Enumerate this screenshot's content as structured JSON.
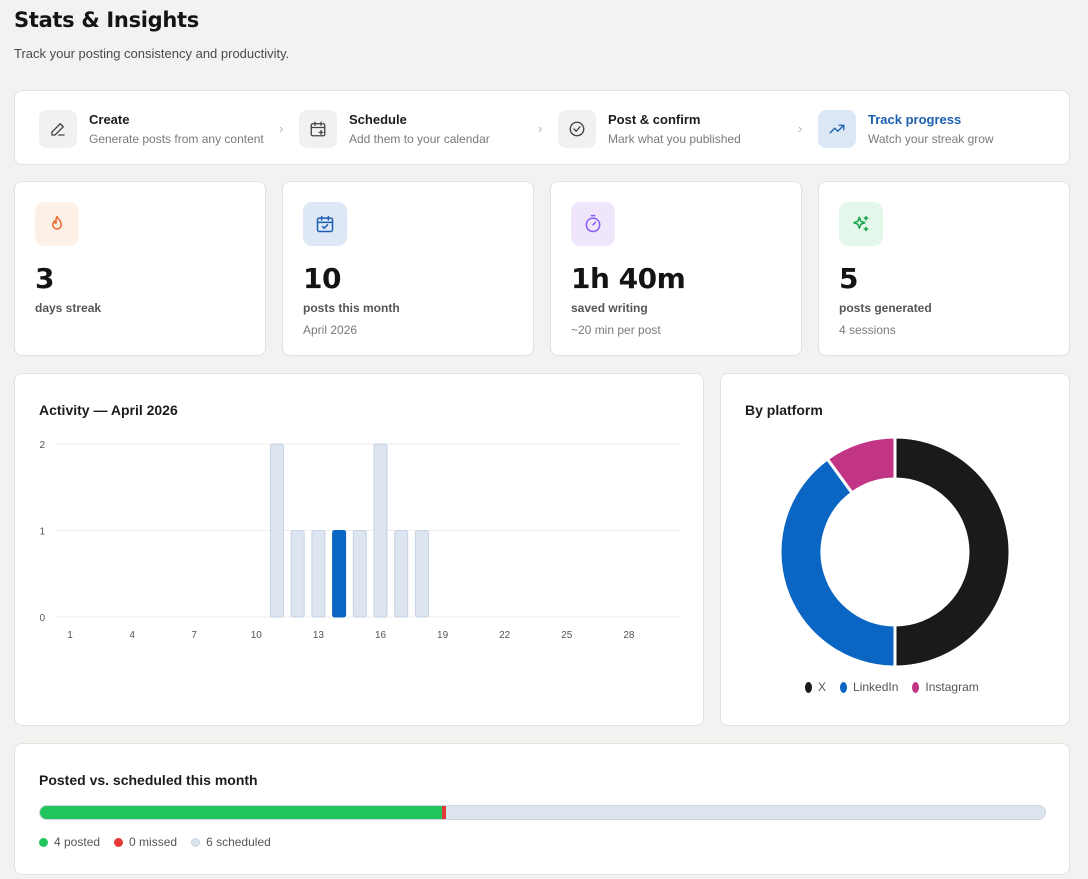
{
  "page": {
    "title": "Stats & Insights",
    "subtitle": "Track your posting consistency and productivity."
  },
  "steps": [
    {
      "title": "Create",
      "desc": "Generate posts from any content",
      "icon": "pencil-icon",
      "active": false
    },
    {
      "title": "Schedule",
      "desc": "Add them to your calendar",
      "icon": "calendar-plus-icon",
      "active": false
    },
    {
      "title": "Post & confirm",
      "desc": "Mark what you published",
      "icon": "check-circle-icon",
      "active": false
    },
    {
      "title": "Track progress",
      "desc": "Watch your streak grow",
      "icon": "trending-up-icon",
      "active": true
    }
  ],
  "stats": [
    {
      "value": "3",
      "label": "days streak",
      "sub": "",
      "icon": "flame-icon",
      "icon_bg": "#fdf1e7",
      "icon_color": "#ea6a2a"
    },
    {
      "value": "10",
      "label": "posts this month",
      "sub": "April 2026",
      "icon": "calendar-check-icon",
      "icon_bg": "#dde7f5",
      "icon_color": "#1d5fb0"
    },
    {
      "value": "1h 40m",
      "label": "saved writing",
      "sub": "~20 min per post",
      "icon": "stopwatch-icon",
      "icon_bg": "#efe6fb",
      "icon_color": "#8b5cf6"
    },
    {
      "value": "5",
      "label": "posts generated",
      "sub": "4 sessions",
      "icon": "sparkles-icon",
      "icon_bg": "#e3f7ea",
      "icon_color": "#16a34a"
    }
  ],
  "activity": {
    "title": "Activity — April 2026"
  },
  "platform": {
    "title": "By platform"
  },
  "posted": {
    "title": "Posted vs. scheduled this month",
    "posted": 4,
    "missed": 0,
    "scheduled": 6,
    "legend": [
      {
        "label": "4 posted",
        "color": "#22c55e"
      },
      {
        "label": "0 missed",
        "color": "#e53935"
      },
      {
        "label": "6 scheduled",
        "color": "#dce4ee"
      }
    ]
  },
  "chart_data": [
    {
      "type": "bar",
      "title": "Activity — April 2026",
      "x": [
        1,
        2,
        3,
        4,
        5,
        6,
        7,
        8,
        9,
        10,
        11,
        12,
        13,
        14,
        15,
        16,
        17,
        18,
        19,
        20,
        21,
        22,
        23,
        24,
        25,
        26,
        27,
        28,
        29,
        30
      ],
      "values": [
        0,
        0,
        0,
        0,
        0,
        0,
        0,
        0,
        0,
        0,
        2,
        1,
        1,
        1,
        1,
        2,
        1,
        1,
        0,
        0,
        0,
        0,
        0,
        0,
        0,
        0,
        0,
        0,
        0,
        0
      ],
      "highlight_x": 14,
      "x_ticks": [
        1,
        4,
        7,
        10,
        13,
        16,
        19,
        22,
        25,
        28
      ],
      "y_ticks": [
        0,
        1,
        2
      ],
      "ylim": [
        0,
        2
      ],
      "grid": true,
      "colors": {
        "bar": "#dce5f0",
        "bar_border": "#c6d3e3",
        "highlight": "#0a66c2"
      }
    },
    {
      "type": "pie",
      "title": "By platform",
      "donut": true,
      "slices": [
        {
          "label": "X",
          "value": 5,
          "color": "#1a1a1a"
        },
        {
          "label": "LinkedIn",
          "value": 4,
          "color": "#0a66c2"
        },
        {
          "label": "Instagram",
          "value": 1,
          "color": "#c13584"
        }
      ],
      "legend_position": "bottom"
    }
  ]
}
